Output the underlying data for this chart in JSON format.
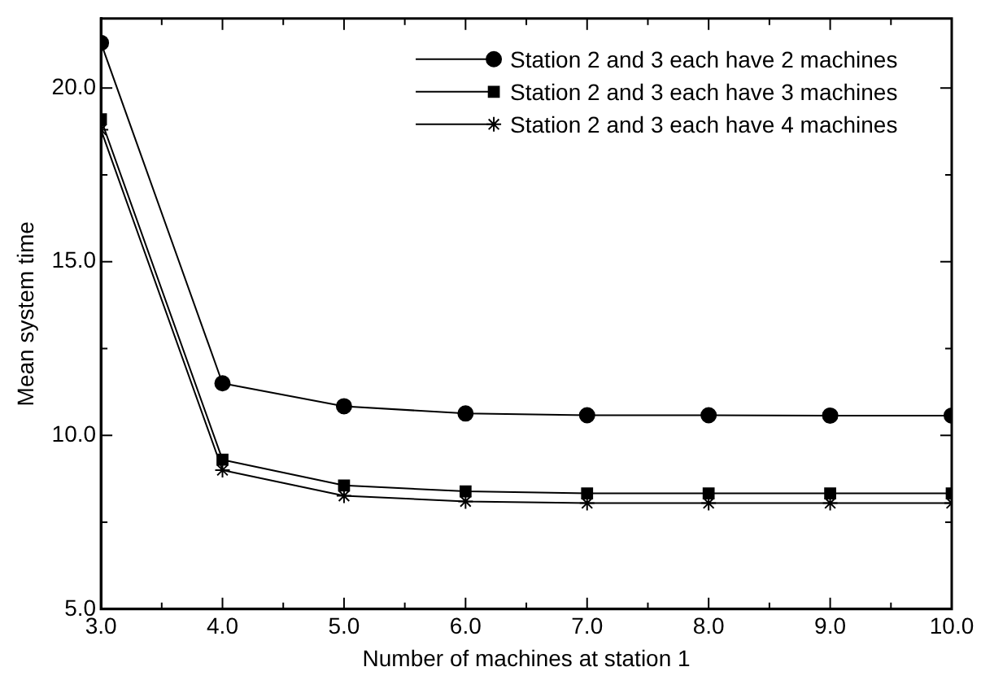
{
  "chart_data": {
    "type": "line",
    "xlabel": "Number of machines at station 1",
    "ylabel": "Mean system time",
    "x": [
      3,
      4,
      5,
      6,
      7,
      8,
      9,
      10
    ],
    "series": [
      {
        "name": "Station 2 and 3 each have 2 machines",
        "color": "#000000",
        "marker": "circle",
        "values": [
          21.3,
          11.5,
          10.84,
          10.63,
          10.58,
          10.58,
          10.57,
          10.57
        ]
      },
      {
        "name": "Station 2 and 3 each have 3 machines",
        "color": "#000000",
        "marker": "square",
        "values": [
          19.1,
          9.3,
          8.56,
          8.39,
          8.33,
          8.33,
          8.33,
          8.33
        ]
      },
      {
        "name": "Station 2 and 3 each have 4 machines",
        "color": "#000000",
        "marker": "cross",
        "values": [
          18.8,
          9.0,
          8.26,
          8.1,
          8.05,
          8.05,
          8.05,
          8.05
        ]
      }
    ],
    "xlim": [
      3,
      10
    ],
    "xticks": [
      {
        "value": 3,
        "label": "3.0"
      },
      {
        "value": 3.5,
        "label": null
      },
      {
        "value": 4,
        "label": "4.0"
      },
      {
        "value": 4.5,
        "label": null
      },
      {
        "value": 5,
        "label": "5.0"
      },
      {
        "value": 5.5,
        "label": null
      },
      {
        "value": 6,
        "label": "6.0"
      },
      {
        "value": 6.5,
        "label": null
      },
      {
        "value": 7,
        "label": "7.0"
      },
      {
        "value": 7.5,
        "label": null
      },
      {
        "value": 8,
        "label": "8.0"
      },
      {
        "value": 8.5,
        "label": null
      },
      {
        "value": 9,
        "label": "9.0"
      },
      {
        "value": 9.5,
        "label": null
      },
      {
        "value": 10,
        "label": "10.0"
      }
    ],
    "ylim": [
      5,
      22
    ],
    "yticks": [
      {
        "value": 5,
        "label": "5.0"
      },
      {
        "value": 7.5,
        "label": null
      },
      {
        "value": 10,
        "label": "10.0"
      },
      {
        "value": 12.5,
        "label": null
      },
      {
        "value": 15,
        "label": "15.0"
      },
      {
        "value": 17.5,
        "label": null
      },
      {
        "value": 20,
        "label": "20.0"
      }
    ],
    "grid": false,
    "legend": "top right",
    "line_style": "solid"
  }
}
